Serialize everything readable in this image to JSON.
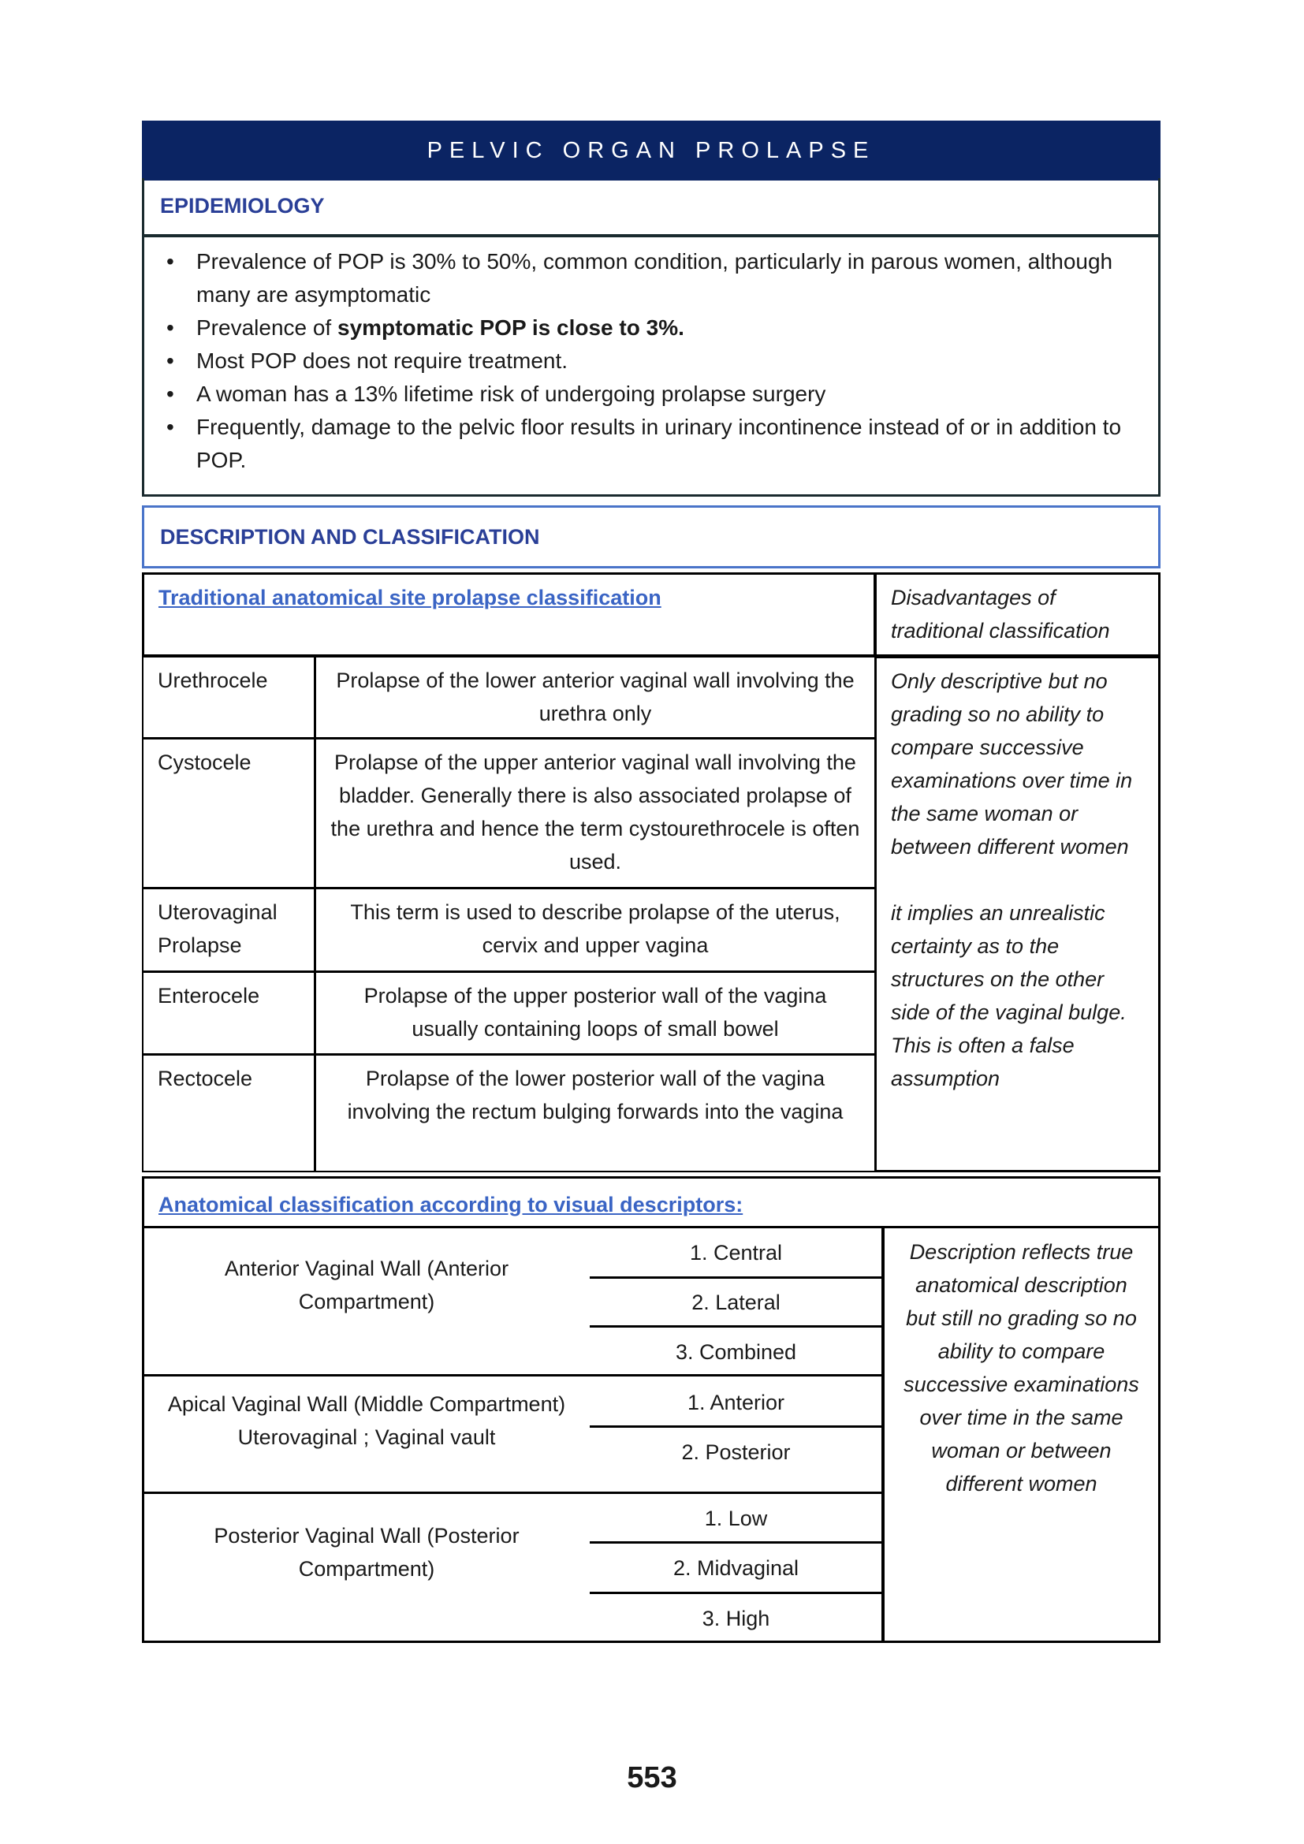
{
  "title": "PELVIC ORGAN PROLAPSE",
  "epidemiology": {
    "heading": "EPIDEMIOLOGY",
    "bullets": [
      {
        "text": "Prevalence of POP is 30% to 50%, common condition, particularly in parous women, although many are asymptomatic"
      },
      {
        "pre": "Prevalence of ",
        "bold": "symptomatic POP is close to 3%."
      },
      {
        "text": "Most POP does not require treatment."
      },
      {
        "text": "A woman has a 13% lifetime risk of undergoing prolapse surgery"
      },
      {
        "text": "Frequently, damage to the pelvic floor results in urinary incontinence instead of or in addition to POP."
      }
    ]
  },
  "description": {
    "heading": "DESCRIPTION AND CLASSIFICATION"
  },
  "traditional": {
    "heading": "Traditional anatomical site prolapse classification",
    "disadvantages_heading": "Disadvantages of traditional classification",
    "rows": [
      {
        "term": "Urethrocele",
        "desc": "Prolapse of the lower anterior vaginal wall involving the urethra only"
      },
      {
        "term": "Cystocele",
        "desc": "Prolapse of the upper anterior vaginal wall involving the bladder. Generally there is also associated prolapse of the urethra and hence the term cystourethrocele is often used."
      },
      {
        "term": "Uterovaginal Prolapse",
        "desc": "This term is used to describe prolapse of the uterus, cervix and upper vagina"
      },
      {
        "term": "Enterocele",
        "desc": "Prolapse of the upper posterior wall of the vagina usually containing loops of small bowel"
      },
      {
        "term": "Rectocele",
        "desc": "Prolapse of the lower posterior wall of the vagina involving the rectum bulging forwards into the vagina"
      }
    ],
    "disadvantages": [
      "Only descriptive but no grading so no ability to compare successive examinations over time in the same woman or between different women",
      "it implies an unrealistic certainty as to the structures on the other side of the vaginal bulge. This is often a false assumption"
    ]
  },
  "visual": {
    "heading": "Anatomical classification according to visual descriptors:",
    "groups": [
      {
        "name": "Anterior Vaginal Wall (Anterior Compartment)",
        "items": [
          "1. Central",
          "2. Lateral",
          "3. Combined"
        ]
      },
      {
        "name": "Apical Vaginal Wall (Middle Compartment)",
        "name2": "Uterovaginal ; Vaginal vault",
        "items": [
          "1. Anterior",
          "2. Posterior"
        ]
      },
      {
        "name": "Posterior Vaginal Wall (Posterior Compartment)",
        "items": [
          "1. Low",
          "2. Midvaginal",
          "3. High"
        ]
      }
    ],
    "note": "Description reflects true anatomical description but still no grading so no ability to compare successive examinations over time in the same woman or between different women"
  },
  "page_number": "553"
}
